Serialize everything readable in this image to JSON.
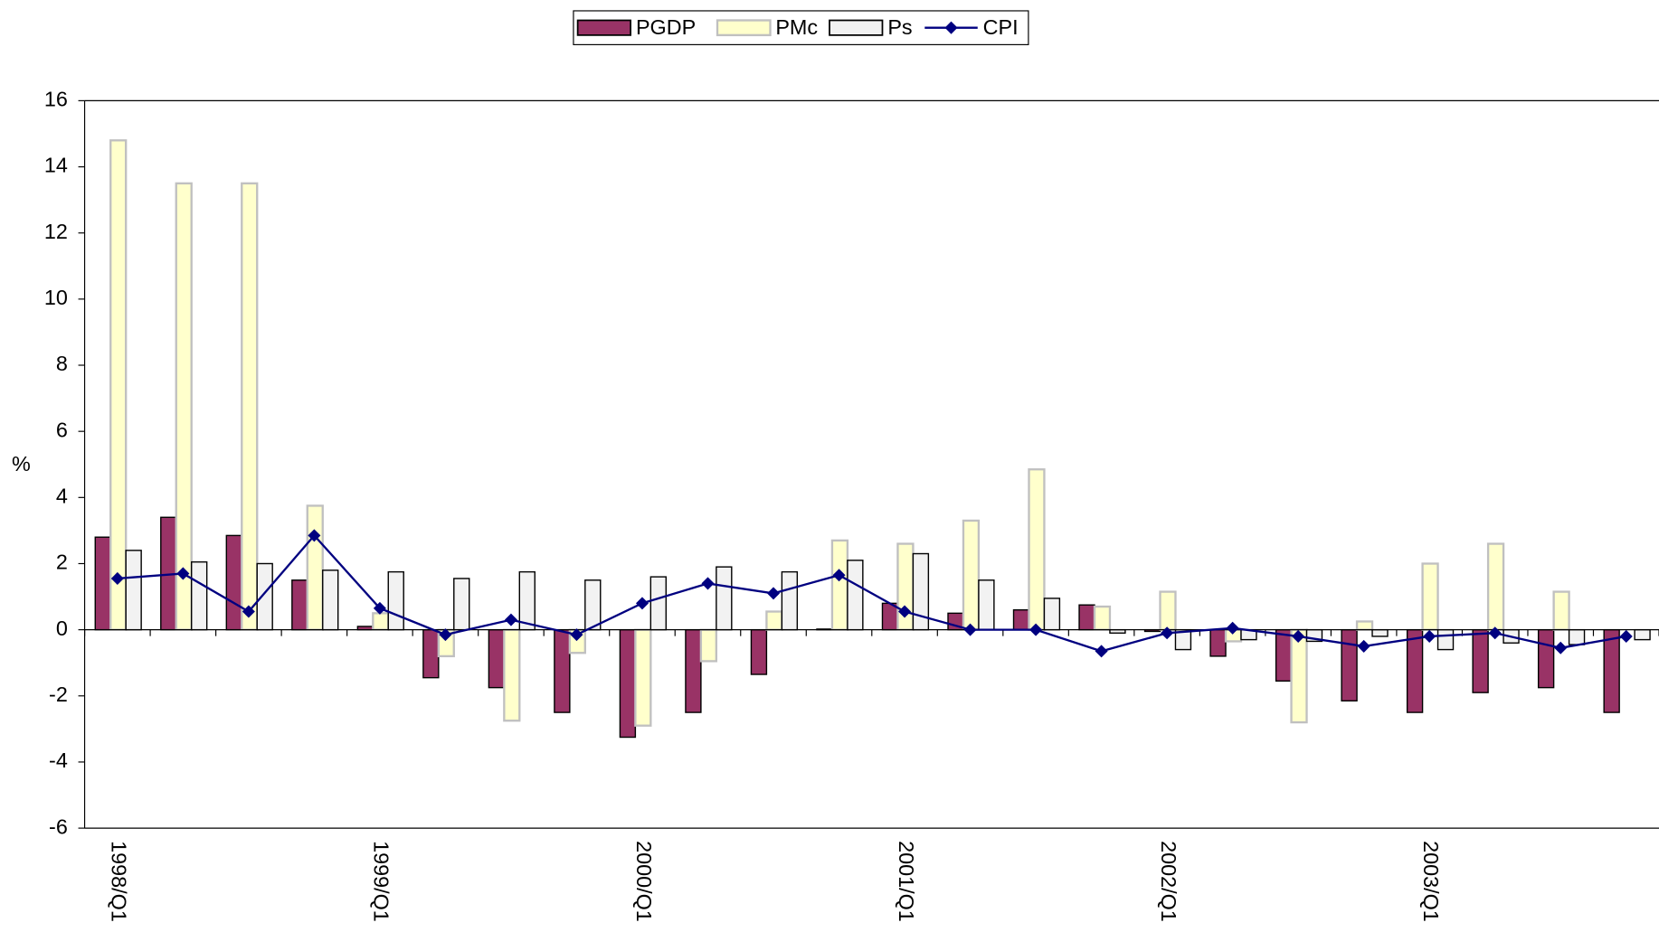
{
  "chart_data": {
    "type": "bar",
    "y_label": "%",
    "categories": [
      "1998/Q1",
      null,
      null,
      null,
      "1999/Q1",
      null,
      null,
      null,
      "2000/Q1",
      null,
      null,
      null,
      "2001/Q1",
      null,
      null,
      null,
      "2002/Q1",
      null,
      null,
      null,
      "2003/Q1",
      null,
      null,
      null
    ],
    "series": [
      {
        "name": "PGDP",
        "type": "bar",
        "color": "#993366",
        "stroke": "#000000",
        "values": [
          2.8,
          3.4,
          2.85,
          1.5,
          0.1,
          -1.45,
          -1.75,
          -2.5,
          -3.25,
          -2.5,
          -1.35,
          0.02,
          0.8,
          0.5,
          0.6,
          0.75,
          -0.05,
          -0.8,
          -1.55,
          -2.15,
          -2.5,
          -1.9,
          -1.75,
          -2.5
        ]
      },
      {
        "name": "PMc",
        "type": "bar",
        "color": "#ffffcc",
        "stroke": "#c0c0c0",
        "values": [
          14.8,
          13.5,
          13.5,
          3.75,
          0.5,
          -0.8,
          -2.75,
          -0.7,
          -2.9,
          -0.95,
          0.55,
          2.7,
          2.6,
          3.3,
          4.85,
          0.7,
          1.15,
          -0.35,
          -2.8,
          0.25,
          2.0,
          2.6,
          1.15,
          null
        ]
      },
      {
        "name": "Ps",
        "type": "bar",
        "color": "#f2f2f2",
        "stroke": "#000000",
        "values": [
          2.4,
          2.05,
          2.0,
          1.8,
          1.75,
          1.55,
          1.75,
          1.5,
          1.6,
          1.9,
          1.75,
          2.1,
          2.3,
          1.5,
          0.95,
          -0.1,
          -0.6,
          -0.3,
          -0.35,
          -0.2,
          -0.6,
          -0.4,
          -0.45,
          -0.3
        ]
      },
      {
        "name": "CPI",
        "type": "line",
        "color": "#000080",
        "values": [
          1.55,
          1.7,
          0.55,
          2.85,
          0.65,
          -0.15,
          0.3,
          -0.15,
          0.8,
          1.4,
          1.1,
          1.65,
          0.55,
          0.0,
          0.0,
          -0.65,
          -0.1,
          0.05,
          -0.2,
          -0.5,
          -0.2,
          -0.1,
          -0.55,
          -0.2
        ]
      }
    ],
    "ylim": [
      -6,
      16
    ],
    "yticks": [
      -6,
      -4,
      -2,
      0,
      2,
      4,
      6,
      8,
      10,
      12,
      14,
      16
    ],
    "legend": "top"
  }
}
